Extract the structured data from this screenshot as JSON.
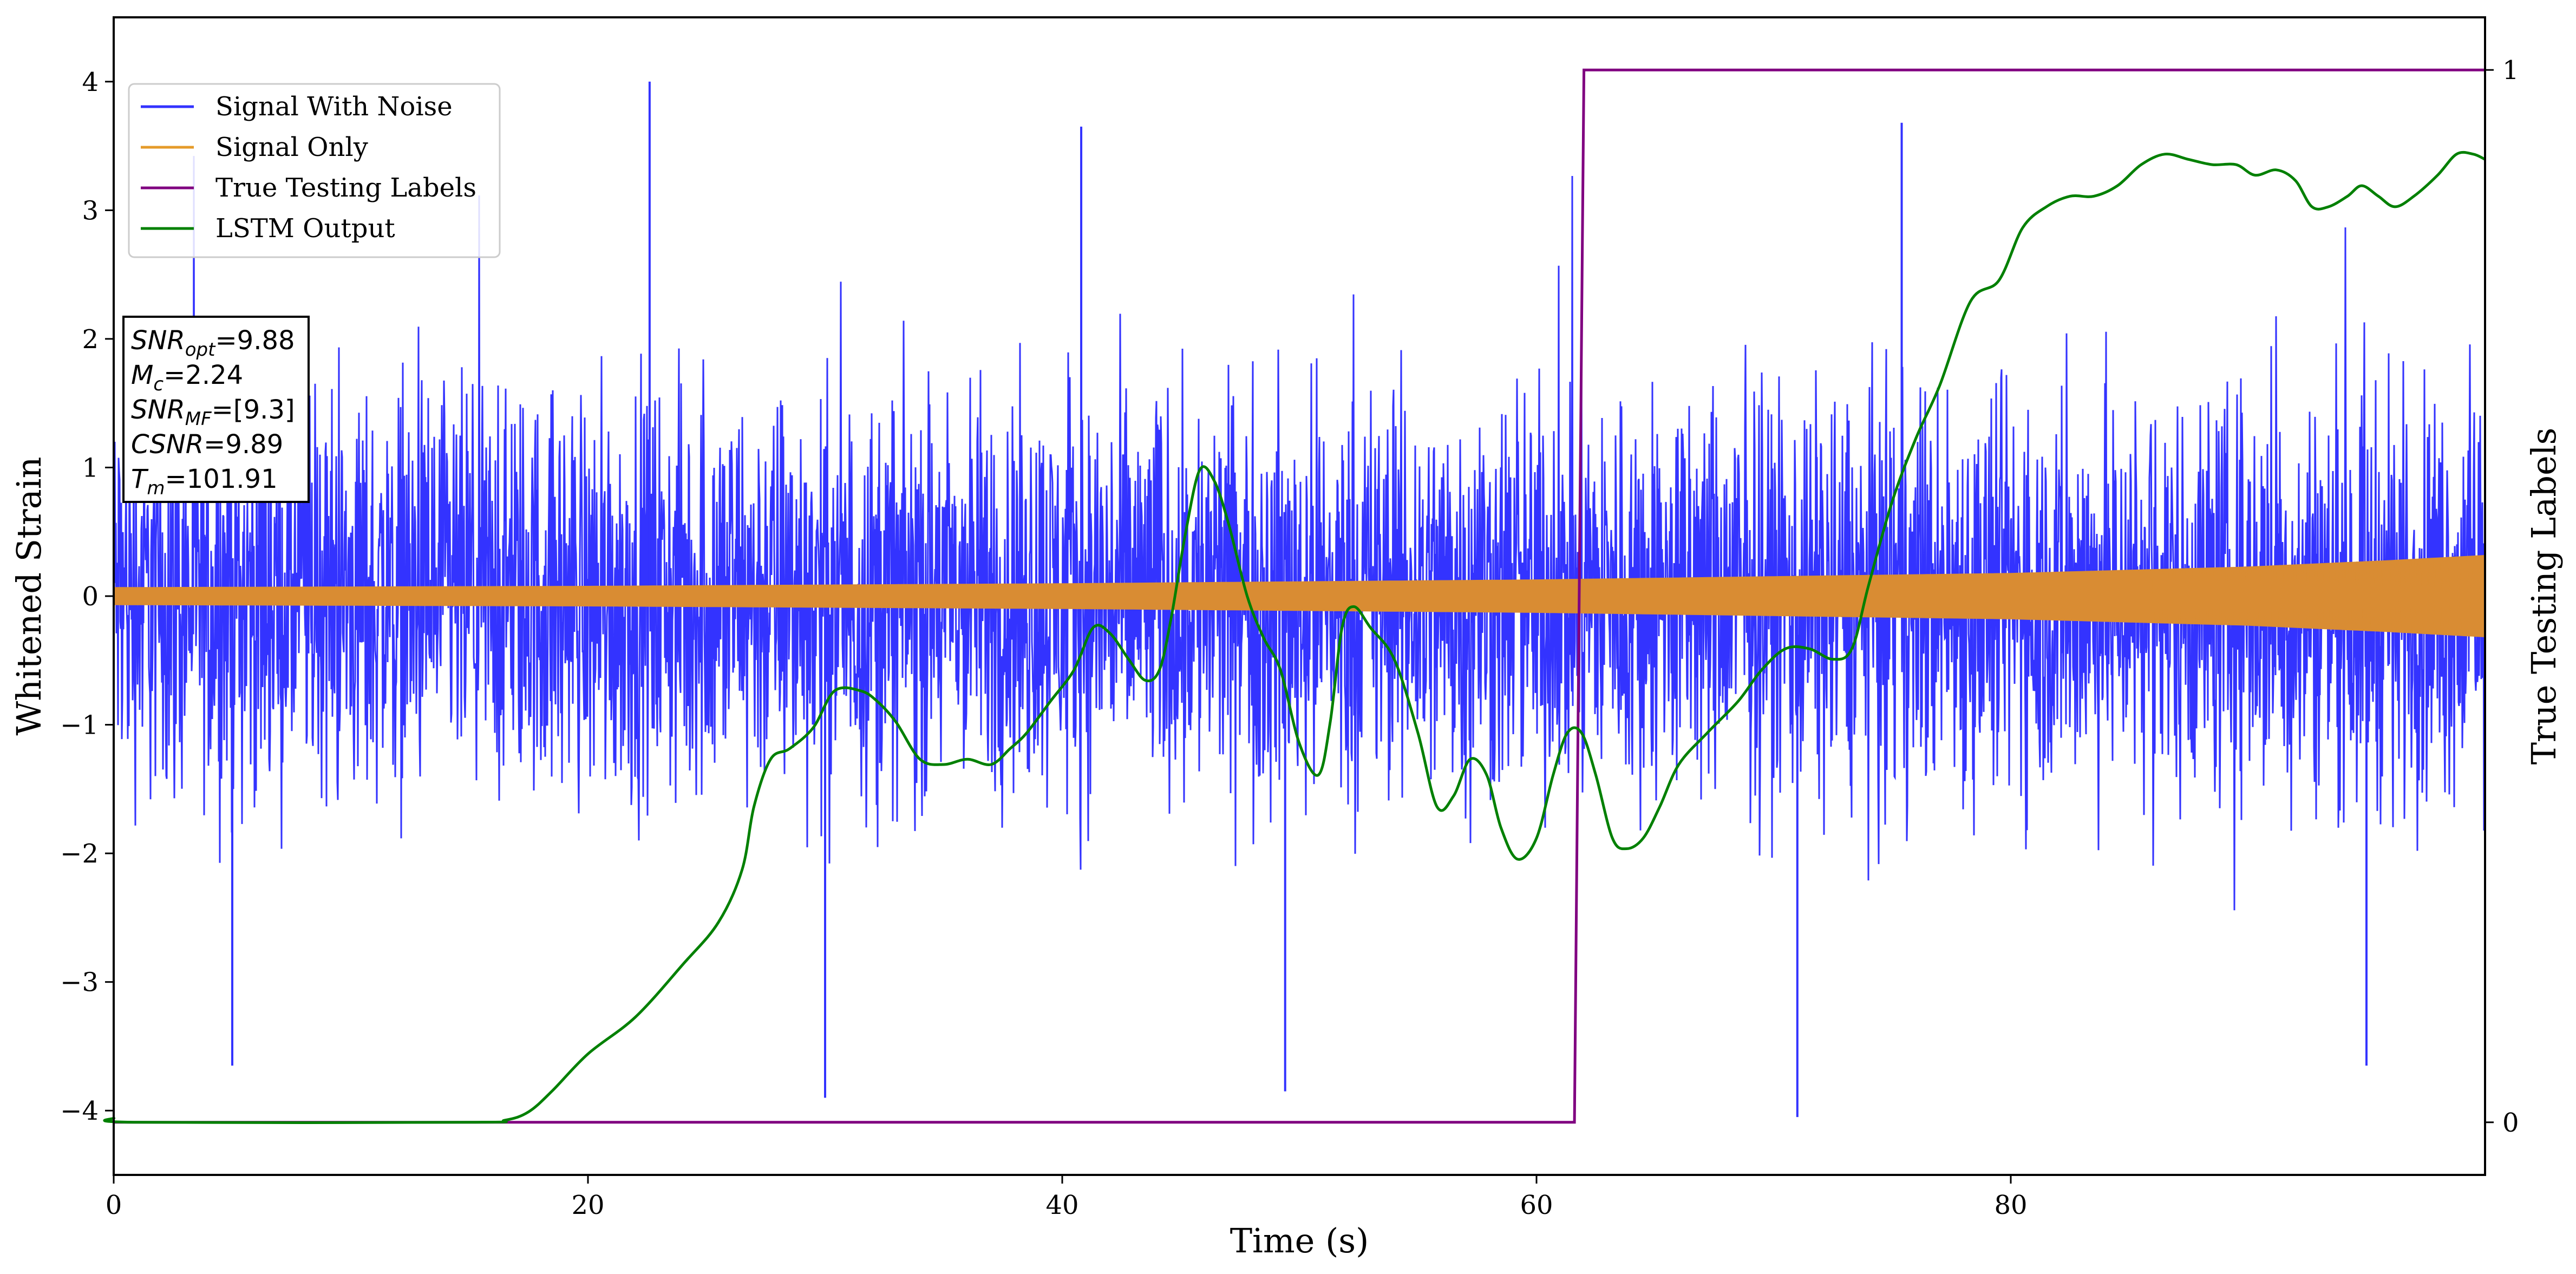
{
  "chart_data": {
    "type": "line",
    "xlabel": "Time (s)",
    "ylabel": "Whitened Strain",
    "y2label": "True Testing Labels",
    "xlim": [
      0,
      100
    ],
    "ylim": [
      -4.5,
      4.5
    ],
    "y2lim": [
      -0.05,
      1.05
    ],
    "x_ticks": [
      0,
      20,
      40,
      60,
      80
    ],
    "x_tick_labels": [
      "0",
      "20",
      "40",
      "60",
      "80"
    ],
    "y_ticks": [
      -4,
      -3,
      -2,
      -1,
      0,
      1,
      2,
      3,
      4
    ],
    "y_tick_labels": [
      "−4",
      "−3",
      "−2",
      "−1",
      "0",
      "1",
      "2",
      "3",
      "4"
    ],
    "y2_ticks": [
      0,
      1
    ],
    "y2_tick_labels": [
      "0",
      "1"
    ],
    "grid": false,
    "legend_position": "top-left",
    "series": [
      {
        "name": "Signal With Noise",
        "color": "#3333ff",
        "axis": "left",
        "kind": "noise-band",
        "band_upper_approx": 1.6,
        "band_lower_approx": -1.6,
        "peaks": [
          {
            "x": 22.6,
            "y": 4.0
          },
          {
            "x": 40.8,
            "y": 3.65
          },
          {
            "x": 75.4,
            "y": 3.68
          },
          {
            "x": 30.0,
            "y": -3.9
          },
          {
            "x": 49.4,
            "y": -3.85
          },
          {
            "x": 71.0,
            "y": -4.05
          },
          {
            "x": 95.0,
            "y": -3.65
          },
          {
            "x": 5.0,
            "y": -3.65
          }
        ]
      },
      {
        "name": "Signal Only",
        "color": "#e59b2a",
        "axis": "left",
        "kind": "chirp-envelope",
        "envelope": [
          {
            "x": 0,
            "y": 0.07
          },
          {
            "x": 20,
            "y": 0.08
          },
          {
            "x": 40,
            "y": 0.1
          },
          {
            "x": 60,
            "y": 0.13
          },
          {
            "x": 80,
            "y": 0.18
          },
          {
            "x": 90,
            "y": 0.23
          },
          {
            "x": 96,
            "y": 0.28
          },
          {
            "x": 100,
            "y": 0.32
          }
        ]
      },
      {
        "name": "True Testing Labels",
        "color": "#800080",
        "axis": "right",
        "points": [
          {
            "x": 0,
            "y": 0
          },
          {
            "x": 61.6,
            "y": 0
          },
          {
            "x": 62.0,
            "y": 1
          },
          {
            "x": 100,
            "y": 1
          }
        ]
      },
      {
        "name": "LSTM Output",
        "color": "#008000",
        "axis": "right",
        "points": [
          {
            "x": 0,
            "y": 0.004
          },
          {
            "x": 1,
            "y": 0
          },
          {
            "x": 15,
            "y": 0
          },
          {
            "x": 16.5,
            "y": 0.002
          },
          {
            "x": 17.5,
            "y": 0.01
          },
          {
            "x": 18.5,
            "y": 0.03
          },
          {
            "x": 20,
            "y": 0.065
          },
          {
            "x": 22,
            "y": 0.1
          },
          {
            "x": 24,
            "y": 0.15
          },
          {
            "x": 25.5,
            "y": 0.19
          },
          {
            "x": 26.5,
            "y": 0.24
          },
          {
            "x": 27,
            "y": 0.3
          },
          {
            "x": 27.7,
            "y": 0.345
          },
          {
            "x": 28.5,
            "y": 0.355
          },
          {
            "x": 29.5,
            "y": 0.375
          },
          {
            "x": 30.4,
            "y": 0.41
          },
          {
            "x": 31.5,
            "y": 0.41
          },
          {
            "x": 32.2,
            "y": 0.4
          },
          {
            "x": 33.0,
            "y": 0.38
          },
          {
            "x": 34.0,
            "y": 0.345
          },
          {
            "x": 35.0,
            "y": 0.34
          },
          {
            "x": 36.0,
            "y": 0.345
          },
          {
            "x": 37.0,
            "y": 0.34
          },
          {
            "x": 37.8,
            "y": 0.355
          },
          {
            "x": 38.5,
            "y": 0.37
          },
          {
            "x": 39.5,
            "y": 0.4
          },
          {
            "x": 40.5,
            "y": 0.43
          },
          {
            "x": 41.3,
            "y": 0.47
          },
          {
            "x": 42.0,
            "y": 0.465
          },
          {
            "x": 42.8,
            "y": 0.44
          },
          {
            "x": 43.5,
            "y": 0.42
          },
          {
            "x": 44.1,
            "y": 0.43
          },
          {
            "x": 44.6,
            "y": 0.48
          },
          {
            "x": 45.2,
            "y": 0.56
          },
          {
            "x": 45.8,
            "y": 0.62
          },
          {
            "x": 46.4,
            "y": 0.61
          },
          {
            "x": 47.0,
            "y": 0.57
          },
          {
            "x": 47.8,
            "y": 0.5
          },
          {
            "x": 48.5,
            "y": 0.46
          },
          {
            "x": 49.2,
            "y": 0.43
          },
          {
            "x": 50.0,
            "y": 0.36
          },
          {
            "x": 50.8,
            "y": 0.33
          },
          {
            "x": 51.3,
            "y": 0.38
          },
          {
            "x": 51.8,
            "y": 0.47
          },
          {
            "x": 52.3,
            "y": 0.49
          },
          {
            "x": 53.0,
            "y": 0.47
          },
          {
            "x": 54.0,
            "y": 0.44
          },
          {
            "x": 55.0,
            "y": 0.37
          },
          {
            "x": 55.8,
            "y": 0.3
          },
          {
            "x": 56.5,
            "y": 0.31
          },
          {
            "x": 57.2,
            "y": 0.345
          },
          {
            "x": 57.9,
            "y": 0.33
          },
          {
            "x": 58.5,
            "y": 0.28
          },
          {
            "x": 59.2,
            "y": 0.25
          },
          {
            "x": 60.0,
            "y": 0.27
          },
          {
            "x": 60.7,
            "y": 0.33
          },
          {
            "x": 61.3,
            "y": 0.37
          },
          {
            "x": 61.9,
            "y": 0.37
          },
          {
            "x": 62.5,
            "y": 0.33
          },
          {
            "x": 63.2,
            "y": 0.27
          },
          {
            "x": 63.8,
            "y": 0.26
          },
          {
            "x": 64.5,
            "y": 0.27
          },
          {
            "x": 65.2,
            "y": 0.3
          },
          {
            "x": 66.0,
            "y": 0.34
          },
          {
            "x": 67.2,
            "y": 0.37
          },
          {
            "x": 68.5,
            "y": 0.4
          },
          {
            "x": 69.5,
            "y": 0.43
          },
          {
            "x": 70.5,
            "y": 0.45
          },
          {
            "x": 71.5,
            "y": 0.45
          },
          {
            "x": 72.5,
            "y": 0.44
          },
          {
            "x": 73.3,
            "y": 0.45
          },
          {
            "x": 74.0,
            "y": 0.51
          },
          {
            "x": 75.0,
            "y": 0.59
          },
          {
            "x": 76.0,
            "y": 0.65
          },
          {
            "x": 77.0,
            "y": 0.7
          },
          {
            "x": 78.3,
            "y": 0.78
          },
          {
            "x": 79.5,
            "y": 0.8
          },
          {
            "x": 80.5,
            "y": 0.85
          },
          {
            "x": 81.5,
            "y": 0.87
          },
          {
            "x": 82.5,
            "y": 0.88
          },
          {
            "x": 83.5,
            "y": 0.88
          },
          {
            "x": 84.5,
            "y": 0.89
          },
          {
            "x": 85.5,
            "y": 0.91
          },
          {
            "x": 86.5,
            "y": 0.92
          },
          {
            "x": 87.5,
            "y": 0.915
          },
          {
            "x": 88.5,
            "y": 0.91
          },
          {
            "x": 89.5,
            "y": 0.91
          },
          {
            "x": 90.3,
            "y": 0.9
          },
          {
            "x": 91.2,
            "y": 0.905
          },
          {
            "x": 92.0,
            "y": 0.895
          },
          {
            "x": 92.7,
            "y": 0.87
          },
          {
            "x": 93.4,
            "y": 0.87
          },
          {
            "x": 94.2,
            "y": 0.88
          },
          {
            "x": 94.8,
            "y": 0.89
          },
          {
            "x": 95.5,
            "y": 0.88
          },
          {
            "x": 96.2,
            "y": 0.87
          },
          {
            "x": 97.0,
            "y": 0.88
          },
          {
            "x": 98.0,
            "y": 0.9
          },
          {
            "x": 98.8,
            "y": 0.92
          },
          {
            "x": 99.5,
            "y": 0.92
          },
          {
            "x": 100,
            "y": 0.915
          }
        ]
      }
    ],
    "annotation": {
      "lines": [
        {
          "base": "SNR",
          "sub": "opt",
          "rest": "=9.88"
        },
        {
          "base": "M",
          "sub": "c",
          "rest": "=2.24"
        },
        {
          "base": "SNR",
          "sub": "MF",
          "rest": "=[9.3]"
        },
        {
          "base": "CSNR",
          "sub": "",
          "rest": "=9.89"
        },
        {
          "base": "T",
          "sub": "m",
          "rest": "=101.91"
        }
      ]
    }
  }
}
